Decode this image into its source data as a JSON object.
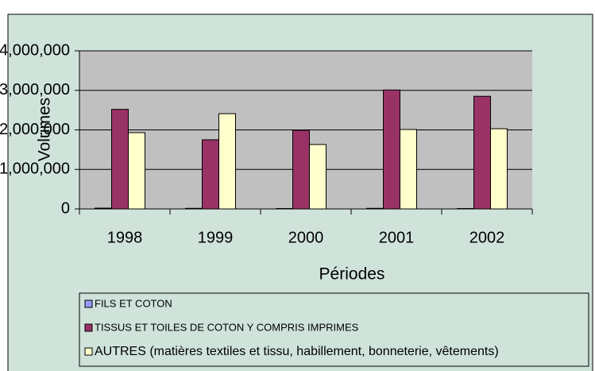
{
  "chart_data": {
    "type": "bar",
    "x_label": "Périodes",
    "y_label": "Volumes",
    "categories": [
      "1998",
      "1999",
      "2000",
      "2001",
      "2002"
    ],
    "series": [
      {
        "name": "FILS ET COTON",
        "color": "#9999ff",
        "values": [
          20000,
          15000,
          10000,
          15000,
          10000
        ]
      },
      {
        "name": "TISSUS ET TOILES DE COTON Y COMPRIS IMPRIMES",
        "color": "#993366",
        "values": [
          2520000,
          1750000,
          1990000,
          3010000,
          2850000
        ]
      },
      {
        "name": "AUTRES (matières textiles et tissu, habillement, bonneterie, vêtements)",
        "color": "#ffffcc",
        "values": [
          1930000,
          2410000,
          1630000,
          2010000,
          2030000
        ]
      }
    ],
    "ylim": [
      0,
      4000000
    ],
    "yticks": [
      0,
      {
        "value": 1000000,
        "label": "1,000,000"
      },
      {
        "value": 2000000,
        "label": "2,000,000"
      },
      {
        "value": 3000000,
        "label": "3,000,000"
      },
      {
        "value": 4000000,
        "label": "4,000,000"
      }
    ],
    "grid": true,
    "legend": "bottom",
    "plot_background": "#c0c0c0"
  }
}
